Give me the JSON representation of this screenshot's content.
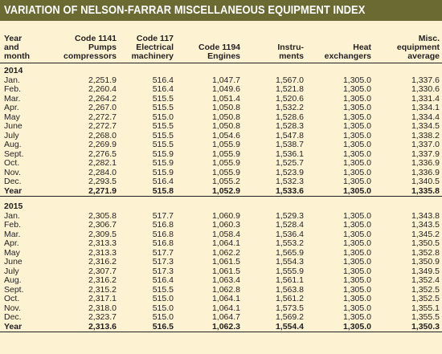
{
  "title": "VARIATION OF NELSON-FARRAR MISCELLANEOUS EQUIPMENT INDEX",
  "headers": [
    [
      "Year",
      "and",
      "month"
    ],
    [
      "Code 1141",
      "Pumps",
      "compressors"
    ],
    [
      "Code 117",
      "Electrical",
      "machinery"
    ],
    [
      "Code 1194",
      "Engines"
    ],
    [
      "Instru-",
      "ments"
    ],
    [
      "Heat",
      "exchangers"
    ],
    [
      "Misc.",
      "equipment",
      "average"
    ]
  ],
  "sections": [
    {
      "year": "2014",
      "rows": [
        [
          "Jan.",
          "2,251.9",
          "516.4",
          "1,047.7",
          "1,567.0",
          "1,305.0",
          "1,337.6"
        ],
        [
          "Feb.",
          "2,260.4",
          "516.4",
          "1,049.6",
          "1,521.8",
          "1,305.0",
          "1,330.6"
        ],
        [
          "Mar.",
          "2,264.2",
          "515.5",
          "1,051.4",
          "1,520.6",
          "1,305.0",
          "1,331.4"
        ],
        [
          "Apr.",
          "2,267.0",
          "515.5",
          "1,050.8",
          "1,532.2",
          "1,305.0",
          "1,334.1"
        ],
        [
          "May",
          "2,272.7",
          "515.0",
          "1,050.8",
          "1,528.6",
          "1,305.0",
          "1,334.4"
        ],
        [
          "June",
          "2,272.7",
          "515.5",
          "1,050.8",
          "1,528.3",
          "1,305.0",
          "1,334.5"
        ],
        [
          "July",
          "2,268.0",
          "515.5",
          "1,054.6",
          "1,547.8",
          "1,305.0",
          "1,338.2"
        ],
        [
          "Aug.",
          "2,269.9",
          "515.5",
          "1,055.9",
          "1,538.7",
          "1,305.0",
          "1,337.0"
        ],
        [
          "Sept.",
          "2,276.5",
          "515.9",
          "1,055.9",
          "1,536.1",
          "1,305.0",
          "1,337.9"
        ],
        [
          "Oct.",
          "2,282.1",
          "515.9",
          "1,055.9",
          "1,525.7",
          "1,305.0",
          "1,336.9"
        ],
        [
          "Nov.",
          "2,284.0",
          "515.9",
          "1,055.9",
          "1,523.9",
          "1,305.0",
          "1,336.9"
        ],
        [
          "Dec.",
          "2,293.5",
          "516.4",
          "1,055.2",
          "1,532.3",
          "1,305.0",
          "1,340.5"
        ]
      ],
      "total": [
        "Year",
        "2,271.9",
        "515.8",
        "1,052.9",
        "1,533.6",
        "1,305.0",
        "1,335.8"
      ]
    },
    {
      "year": "2015",
      "rows": [
        [
          "Jan.",
          "2,305.8",
          "517.7",
          "1,060.9",
          "1,529.3",
          "1,305.0",
          "1,343.8"
        ],
        [
          "Feb.",
          "2,306.7",
          "516.8",
          "1,060.3",
          "1,528.4",
          "1,305.0",
          "1,343.5"
        ],
        [
          "Mar.",
          "2,309.5",
          "516.8",
          "1,058.4",
          "1,536.4",
          "1,305.0",
          "1,345.2"
        ],
        [
          "Apr.",
          "2,313.3",
          "516.8",
          "1,064.1",
          "1,553.2",
          "1,305.0",
          "1,350.5"
        ],
        [
          "May",
          "2,313.3",
          "517.7",
          "1,062.2",
          "1,565.9",
          "1,305.0",
          "1,352.8"
        ],
        [
          "June",
          "2,316.2",
          "517.3",
          "1,061.5",
          "1,554.3",
          "1,305.0",
          "1,350.9"
        ],
        [
          "July",
          "2,307.7",
          "517.3",
          "1,061.5",
          "1,555.9",
          "1,305.0",
          "1,349.5"
        ],
        [
          "Aug.",
          "2,316.2",
          "516.4",
          "1,063.4",
          "1,561.1",
          "1,305.0",
          "1,352.4"
        ],
        [
          "Sept.",
          "2,315.2",
          "515.5",
          "1,062.8",
          "1,563.8",
          "1,305.0",
          "1,352.5"
        ],
        [
          "Oct.",
          "2,317.1",
          "515.0",
          "1,064.1",
          "1,561.2",
          "1,305.0",
          "1,352.5"
        ],
        [
          "Nov.",
          "2,318.0",
          "515.0",
          "1,064.1",
          "1,573.5",
          "1,305.0",
          "1,355.1"
        ],
        [
          "Dec.",
          "2,323.7",
          "515.0",
          "1,064.7",
          "1,569.2",
          "1,305.0",
          "1,355.5"
        ]
      ],
      "total": [
        "Year",
        "2,313.6",
        "516.5",
        "1,062.3",
        "1,554.4",
        "1,305.0",
        "1,350.3"
      ]
    }
  ]
}
